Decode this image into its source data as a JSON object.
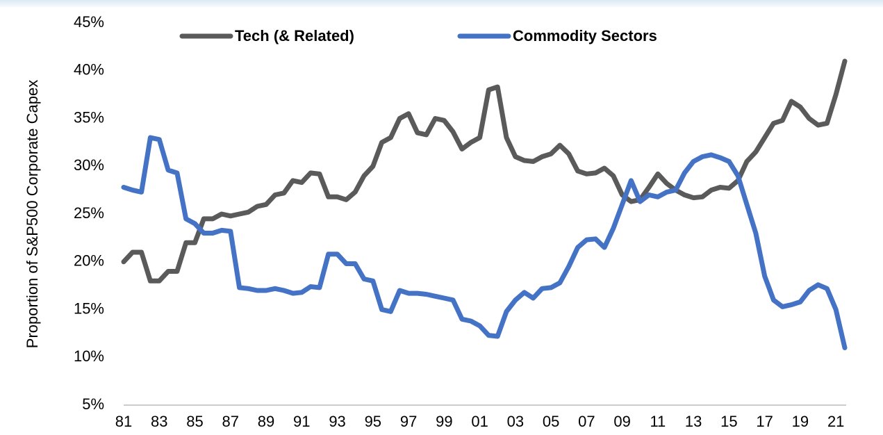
{
  "chart_data": {
    "type": "line",
    "y_label": "Proportion of S&P500 Corporate Capex",
    "x": [
      1981,
      1981.5,
      1982,
      1982.5,
      1983,
      1983.5,
      1984,
      1984.5,
      1985,
      1985.5,
      1986,
      1986.5,
      1987,
      1987.5,
      1988,
      1988.5,
      1989,
      1989.5,
      1990,
      1990.5,
      1991,
      1991.5,
      1992,
      1992.5,
      1993,
      1993.5,
      1994,
      1994.5,
      1995,
      1995.5,
      1996,
      1996.5,
      1997,
      1997.5,
      1998,
      1998.5,
      1999,
      1999.5,
      2000,
      2000.5,
      2001,
      2001.5,
      2002,
      2002.5,
      2003,
      2003.5,
      2004,
      2004.5,
      2005,
      2005.5,
      2006,
      2006.5,
      2007,
      2007.5,
      2008,
      2008.5,
      2009,
      2009.5,
      2010,
      2010.5,
      2011,
      2011.5,
      2012,
      2012.5,
      2013,
      2013.5,
      2014,
      2014.5,
      2015,
      2015.5,
      2016,
      2016.5,
      2017,
      2017.5,
      2018,
      2018.5,
      2019,
      2019.5,
      2020,
      2020.5,
      2021,
      2021.5
    ],
    "series": [
      {
        "name": "Tech (& Related)",
        "color": "#5a5a5a",
        "values": [
          20,
          21,
          21,
          18,
          18,
          19,
          19,
          22,
          22,
          24.5,
          24.5,
          25,
          24.8,
          25,
          25.2,
          25.8,
          26,
          27,
          27.2,
          28.5,
          28.3,
          29.3,
          29.2,
          26.8,
          26.8,
          26.5,
          27.3,
          29,
          30,
          32.5,
          33,
          35,
          35.5,
          33.5,
          33.3,
          35,
          34.8,
          33.6,
          31.8,
          32.5,
          33,
          38,
          38.3,
          33,
          31,
          30.6,
          30.5,
          31,
          31.3,
          32.2,
          31.3,
          29.5,
          29.2,
          29.3,
          29.8,
          29,
          27,
          26.3,
          26.5,
          27.8,
          29.2,
          28.2,
          27.5,
          27,
          26.7,
          26.8,
          27.5,
          27.8,
          27.7,
          28.5,
          30.5,
          31.5,
          33,
          34.5,
          34.8,
          36.8,
          36.2,
          35,
          34.3,
          34.5,
          37.5,
          41
        ]
      },
      {
        "name": "Commodity Sectors",
        "color": "#4472c4",
        "values": [
          27.8,
          27.5,
          27.3,
          33,
          32.8,
          29.6,
          29.3,
          24.5,
          24,
          23,
          23,
          23.3,
          23.2,
          17.3,
          17.2,
          17,
          17,
          17.2,
          17,
          16.7,
          16.8,
          17.4,
          17.3,
          20.8,
          20.8,
          19.8,
          19.8,
          18.2,
          18,
          15,
          14.8,
          17,
          16.7,
          16.7,
          16.6,
          16.4,
          16.2,
          16,
          14,
          13.8,
          13.3,
          12.3,
          12.2,
          14.8,
          16,
          16.8,
          16.2,
          17.2,
          17.3,
          17.8,
          19.5,
          21.5,
          22.3,
          22.4,
          21.5,
          23.5,
          26,
          28.5,
          26.3,
          27,
          26.8,
          27.3,
          27.5,
          29.3,
          30.5,
          31,
          31.2,
          30.9,
          30.5,
          29,
          26,
          23,
          18.5,
          16,
          15.3,
          15.5,
          15.8,
          17,
          17.6,
          17.2,
          15,
          11
        ]
      }
    ],
    "xlim": [
      1981,
      2021.5
    ],
    "xticks": [
      {
        "value": 1981,
        "label": "81"
      },
      {
        "value": 1983,
        "label": "83"
      },
      {
        "value": 1985,
        "label": "85"
      },
      {
        "value": 1987,
        "label": "87"
      },
      {
        "value": 1989,
        "label": "89"
      },
      {
        "value": 1991,
        "label": "91"
      },
      {
        "value": 1993,
        "label": "93"
      },
      {
        "value": 1995,
        "label": "95"
      },
      {
        "value": 1997,
        "label": "97"
      },
      {
        "value": 1999,
        "label": "99"
      },
      {
        "value": 2001,
        "label": "01"
      },
      {
        "value": 2003,
        "label": "03"
      },
      {
        "value": 2005,
        "label": "05"
      },
      {
        "value": 2007,
        "label": "07"
      },
      {
        "value": 2009,
        "label": "09"
      },
      {
        "value": 2011,
        "label": "11"
      },
      {
        "value": 2013,
        "label": "13"
      },
      {
        "value": 2015,
        "label": "15"
      },
      {
        "value": 2017,
        "label": "17"
      },
      {
        "value": 2019,
        "label": "19"
      },
      {
        "value": 2021,
        "label": "21"
      }
    ],
    "ylim": [
      5,
      45
    ],
    "yticks": [
      {
        "value": 5,
        "label": "5%"
      },
      {
        "value": 10,
        "label": "10%"
      },
      {
        "value": 15,
        "label": "15%"
      },
      {
        "value": 20,
        "label": "20%"
      },
      {
        "value": 25,
        "label": "25%"
      },
      {
        "value": 30,
        "label": "30%"
      },
      {
        "value": 35,
        "label": "35%"
      },
      {
        "value": 40,
        "label": "40%"
      },
      {
        "value": 45,
        "label": "45%"
      }
    ],
    "grid": false
  }
}
